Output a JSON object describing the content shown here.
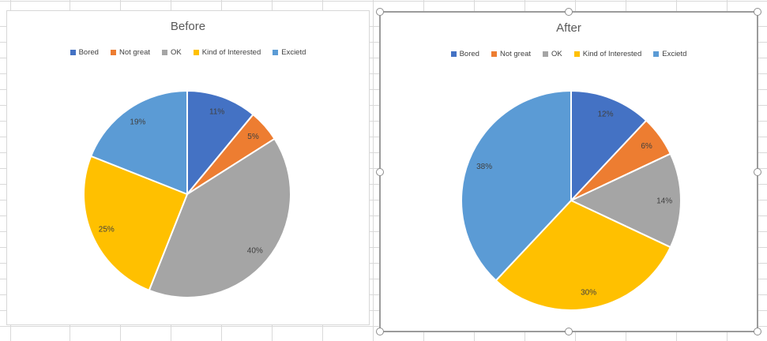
{
  "theme_colors": {
    "blue": "#4472C4",
    "orange": "#ED7D31",
    "gray": "#A5A5A5",
    "yellow": "#FFC000",
    "light_blue": "#5B9BD5",
    "title_text": "#595959",
    "label_text": "#404040",
    "gridline": "#D9D9D9"
  },
  "chart_data": [
    {
      "type": "pie",
      "title": "Before",
      "categories": [
        "Bored",
        "Not great",
        "OK",
        "Kind of Interested",
        "Excietd"
      ],
      "values": [
        11,
        5,
        40,
        25,
        19
      ],
      "data_labels": [
        "11%",
        "5%",
        "40%",
        "25%",
        "19%"
      ],
      "colors": [
        "#4472C4",
        "#ED7D31",
        "#A5A5A5",
        "#FFC000",
        "#5B9BD5"
      ],
      "start_angle_deg": 0,
      "direction": "clockwise",
      "legend_position": "top",
      "label_color": "#404040",
      "selected": false
    },
    {
      "type": "pie",
      "title": "After",
      "categories": [
        "Bored",
        "Not great",
        "OK",
        "Kind of Interested",
        "Excietd"
      ],
      "values": [
        12,
        6,
        14,
        30,
        38
      ],
      "data_labels": [
        "12%",
        "6%",
        "14%",
        "30%",
        "38%"
      ],
      "colors": [
        "#4472C4",
        "#ED7D31",
        "#A5A5A5",
        "#FFC000",
        "#5B9BD5"
      ],
      "start_angle_deg": 0,
      "direction": "clockwise",
      "legend_position": "top",
      "label_color": "#404040",
      "selected": true
    }
  ]
}
